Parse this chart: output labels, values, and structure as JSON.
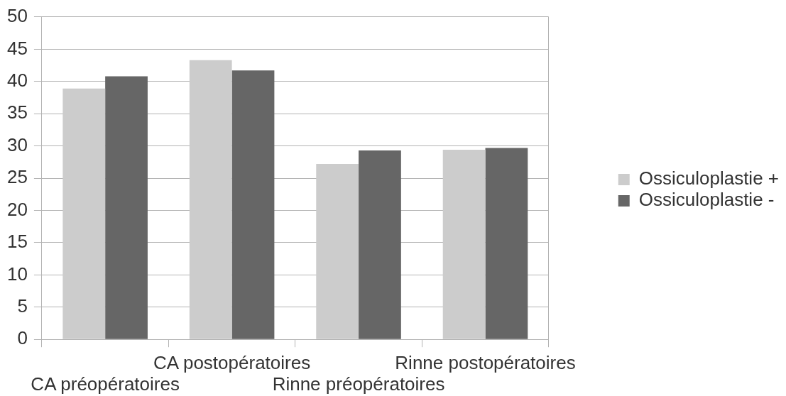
{
  "chart_data": {
    "type": "bar",
    "categories": [
      "CA préopératoires",
      "CA postopératoires",
      "Rinne préopératoires",
      "Rinne postopératoires"
    ],
    "series": [
      {
        "name": "Ossiculoplastie +",
        "color": "#cccccc",
        "values": [
          38.9,
          43.3,
          27.2,
          29.4
        ]
      },
      {
        "name": "Ossiculoplastie -",
        "color": "#666666",
        "values": [
          40.8,
          41.7,
          29.3,
          29.7
        ]
      }
    ],
    "ylim": [
      0,
      50
    ],
    "yticks": [
      0,
      5,
      10,
      15,
      20,
      25,
      30,
      35,
      40,
      45,
      50
    ],
    "grid": "y",
    "legend": "right"
  }
}
